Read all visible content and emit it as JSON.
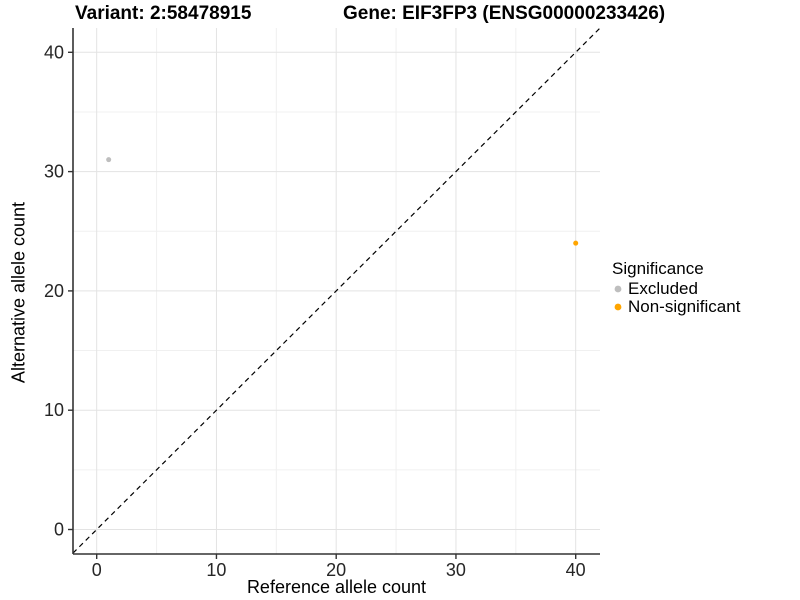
{
  "chart_data": {
    "type": "scatter",
    "title_left": "Variant: 2:58478915",
    "title_right": "Gene: EIF3FP3 (ENSG00000233426)",
    "xlabel": "Reference allele count",
    "ylabel": "Alternative allele count",
    "xlim": [
      -2,
      42
    ],
    "ylim": [
      -2,
      42
    ],
    "xticks": [
      0,
      10,
      20,
      30,
      40
    ],
    "yticks": [
      0,
      10,
      20,
      30,
      40
    ],
    "xminor": [
      5,
      15,
      25,
      35
    ],
    "yminor": [
      5,
      15,
      25,
      35
    ],
    "grid": true,
    "legend_position": "right",
    "identity_line": {
      "type": "abline",
      "slope": 1,
      "intercept": 0,
      "style": "dashed",
      "color": "#000000"
    },
    "series": [
      {
        "name": "Excluded",
        "color": "#BEBEBE",
        "points": [
          {
            "x": 1,
            "y": 31
          }
        ]
      },
      {
        "name": "Non-significant",
        "color": "#FFA500",
        "points": [
          {
            "x": 40,
            "y": 24
          }
        ]
      }
    ],
    "legend": {
      "title": "Significance"
    }
  },
  "style_colors": {
    "grid_major": "#E3E3E3",
    "grid_minor": "#F0F0F0",
    "axis_line": "#333333",
    "tick_label": "#262626"
  }
}
